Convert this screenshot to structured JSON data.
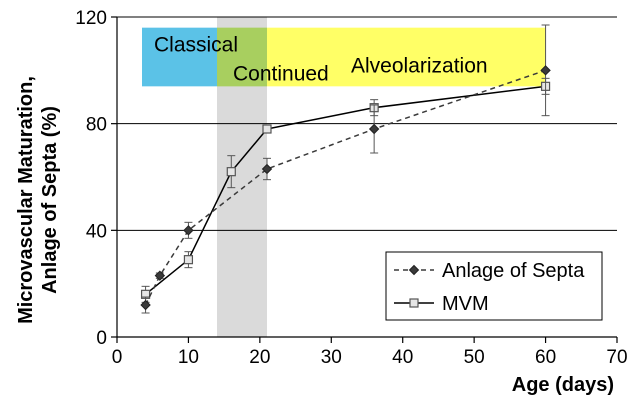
{
  "chart_data": {
    "type": "line",
    "xlabel": "Age (days)",
    "ylabel_line1": "Microvascular Maturation,",
    "ylabel_line2": "Anlage of Septa (%)",
    "xlim": [
      0,
      70
    ],
    "ylim": [
      0,
      120
    ],
    "xticks": [
      0,
      10,
      20,
      30,
      40,
      50,
      60,
      70
    ],
    "yticks": [
      0,
      40,
      80,
      120
    ],
    "gridlines_y": [
      40,
      80,
      120
    ],
    "phases": [
      {
        "label": "Classical",
        "x_start": 3.5,
        "x_end": 14,
        "y_start": 94,
        "y_end": 116,
        "color": "#5bc2e7"
      },
      {
        "label": "Continued",
        "x_start": 14,
        "x_end": 21,
        "y_start": 94,
        "y_end": 116,
        "color": "#a8cf5f"
      },
      {
        "label": "Alveolarization",
        "x_start": 21,
        "x_end": 60,
        "y_start": 94,
        "y_end": 116,
        "color": "#ffff66"
      }
    ],
    "shaded_band": {
      "x_start": 14,
      "x_end": 21,
      "color": "#d3d3d3"
    },
    "legend_position": "bottom-right",
    "series": [
      {
        "name": "Anlage of Septa",
        "marker": "diamond",
        "line_style": "dashed",
        "color": "#3a3a3a",
        "x": [
          4,
          6,
          10,
          21,
          36,
          60
        ],
        "y": [
          12,
          23,
          40,
          63,
          78,
          100
        ],
        "err": [
          3,
          1,
          3,
          4,
          9,
          17
        ]
      },
      {
        "name": "MVM",
        "marker": "square",
        "line_style": "solid",
        "color": "#000000",
        "x": [
          4,
          10,
          16,
          21,
          36,
          60
        ],
        "y": [
          16,
          29,
          62,
          78,
          86,
          94
        ],
        "err": [
          3,
          3,
          6,
          1,
          3,
          3
        ]
      }
    ]
  }
}
